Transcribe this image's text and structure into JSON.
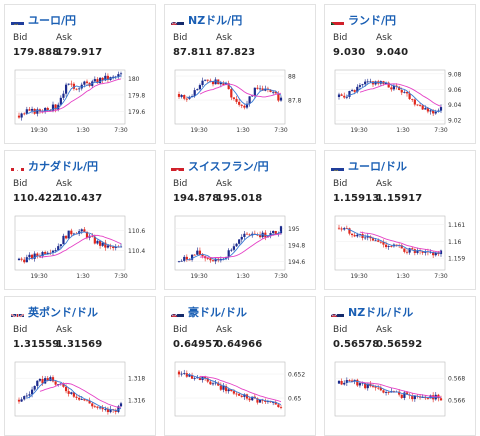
{
  "labels": {
    "bid": "Bid",
    "ask": "Ask"
  },
  "colors": {
    "up": "#1b2a8c",
    "down": "#e0281e",
    "ma1": "#3a7bd5",
    "ma2": "#e542c6",
    "title": "#1a5fb4"
  },
  "cards": [
    {
      "name": "ユーロ/円",
      "flag": "eu-jp",
      "bid": "179.888",
      "ask": "179.917",
      "chart_data": {
        "type": "candlestick",
        "xticks": [
          "19:30",
          "1:30",
          "7:30"
        ],
        "yticks": [
          "180",
          "179.8",
          "179.6"
        ],
        "ylim": [
          179.45,
          180.1
        ],
        "open": 179.55,
        "trend": [
          0,
          0.05,
          0.05,
          0.1,
          0.1,
          0.35,
          0.35,
          0.38,
          0.4,
          0.45,
          0.45,
          0.5
        ]
      }
    },
    {
      "name": "NZドル/円",
      "flag": "nz-jp",
      "bid": "87.811",
      "ask": "87.823",
      "chart_data": {
        "type": "candlestick",
        "xticks": [
          "19:30",
          "1:30",
          "7:30"
        ],
        "yticks": [
          "88",
          "87.8"
        ],
        "ylim": [
          87.6,
          88.05
        ],
        "open": 87.85,
        "trend": [
          0,
          -0.05,
          0.05,
          0.12,
          0.1,
          0.08,
          -0.05,
          -0.1,
          0.02,
          0.05,
          0,
          -0.04
        ]
      }
    },
    {
      "name": "ランド/円",
      "flag": "za-jp",
      "bid": "9.030",
      "ask": "9.040",
      "chart_data": {
        "type": "candlestick",
        "xticks": [
          "19:30",
          "1:30",
          "7:30"
        ],
        "yticks": [
          "9.08",
          "9.06",
          "9.04",
          "9.02"
        ],
        "ylim": [
          9.015,
          9.085
        ],
        "open": 9.05,
        "trend": [
          0,
          0.004,
          0.01,
          0.018,
          0.02,
          0.015,
          0.012,
          0.008,
          -0.005,
          -0.012,
          -0.02,
          -0.015
        ]
      }
    },
    {
      "name": "カナダドル/円",
      "flag": "ca-jp",
      "bid": "110.422",
      "ask": "110.437",
      "chart_data": {
        "type": "candlestick",
        "xticks": [
          "19:30",
          "1:30",
          "7:30"
        ],
        "yticks": [
          "110.6",
          "110.4"
        ],
        "ylim": [
          110.2,
          110.75
        ],
        "open": 110.3,
        "trend": [
          0,
          0.02,
          0.05,
          0.1,
          0.12,
          0.25,
          0.3,
          0.28,
          0.2,
          0.15,
          0.12,
          0.12
        ]
      }
    },
    {
      "name": "スイスフラン/円",
      "flag": "ch-jp",
      "bid": "194.878",
      "ask": "195.018",
      "chart_data": {
        "type": "candlestick",
        "xticks": [
          "19:30",
          "1:30",
          "7:30"
        ],
        "yticks": [
          "195",
          "194.8",
          "194.6"
        ],
        "ylim": [
          194.5,
          195.15
        ],
        "open": 194.6,
        "trend": [
          0,
          0.05,
          0.1,
          0.05,
          0,
          0.08,
          0.2,
          0.3,
          0.35,
          0.32,
          0.33,
          0.4
        ]
      }
    },
    {
      "name": "ユーロ/ドル",
      "flag": "eu-us",
      "bid": "1.15913",
      "ask": "1.15917",
      "chart_data": {
        "type": "candlestick",
        "xticks": [
          "19:30",
          "1:30",
          "7:30"
        ],
        "yticks": [
          "1.161",
          "1.16",
          "1.159"
        ],
        "ylim": [
          1.1583,
          1.1615
        ],
        "open": 1.1608,
        "trend": [
          0,
          -0.0002,
          -0.0004,
          -0.0006,
          -0.0008,
          -0.001,
          -0.0011,
          -0.0013,
          -0.0014,
          -0.0016,
          -0.0015,
          -0.0015
        ]
      }
    },
    {
      "name": "英ポンド/ドル",
      "flag": "gb-us",
      "bid": "1.31559",
      "ask": "1.31569",
      "chart_data": {
        "type": "candlestick",
        "xticks": [],
        "yticks": [
          "1.318",
          "1.316"
        ],
        "ylim": [
          1.3145,
          1.3195
        ],
        "open": 1.316,
        "trend": [
          0,
          0.0005,
          0.0015,
          0.002,
          0.0015,
          0.001,
          0.0005,
          0,
          -0.0005,
          -0.001,
          -0.001,
          -0.0006
        ]
      }
    },
    {
      "name": "豪ドル/ドル",
      "flag": "au-us",
      "bid": "0.64957",
      "ask": "0.64966",
      "chart_data": {
        "type": "candlestick",
        "xticks": [],
        "yticks": [
          "0.652",
          "0.65"
        ],
        "ylim": [
          0.6485,
          0.653
        ],
        "open": 0.6522,
        "trend": [
          0,
          -0.0002,
          -0.0005,
          -0.0008,
          -0.0012,
          -0.0015,
          -0.0018,
          -0.002,
          -0.0022,
          -0.0025,
          -0.0027,
          -0.0027
        ]
      }
    },
    {
      "name": "NZドル/ドル",
      "flag": "nz-us",
      "bid": "0.56578",
      "ask": "0.56592",
      "chart_data": {
        "type": "candlestick",
        "xticks": [],
        "yticks": [
          "0.568",
          "0.566"
        ],
        "ylim": [
          0.5645,
          0.5695
        ],
        "open": 0.5675,
        "trend": [
          0,
          0.0003,
          0.0001,
          -0.0002,
          -0.0005,
          -0.0007,
          -0.0009,
          -0.0011,
          -0.0012,
          -0.0013,
          -0.0012,
          -0.0013
        ]
      }
    }
  ]
}
